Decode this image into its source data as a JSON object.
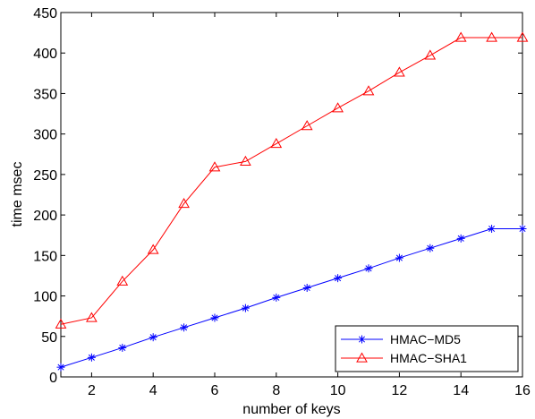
{
  "chart_data": {
    "type": "line",
    "title": "",
    "xlabel": "number of keys",
    "ylabel": "time msec",
    "x": [
      1,
      2,
      3,
      4,
      5,
      6,
      7,
      8,
      9,
      10,
      11,
      12,
      13,
      14,
      15,
      16
    ],
    "xlim": [
      1,
      16
    ],
    "ylim": [
      0,
      450
    ],
    "xticks": [
      2,
      4,
      6,
      8,
      10,
      12,
      14,
      16
    ],
    "yticks": [
      0,
      50,
      100,
      150,
      200,
      250,
      300,
      350,
      400,
      450
    ],
    "grid": false,
    "legend_position": "bottom-right",
    "series": [
      {
        "name": "HMAC−MD5",
        "color": "#0000ff",
        "marker": "asterisk",
        "values": [
          12,
          24,
          36,
          49,
          61,
          73,
          85,
          98,
          110,
          122,
          134,
          147,
          159,
          171,
          183,
          183
        ]
      },
      {
        "name": "HMAC−SHA1",
        "color": "#ff0000",
        "marker": "triangle",
        "values": [
          65,
          73,
          118,
          157,
          214,
          259,
          266,
          288,
          310,
          332,
          353,
          376,
          397,
          419,
          419,
          419
        ]
      }
    ]
  }
}
